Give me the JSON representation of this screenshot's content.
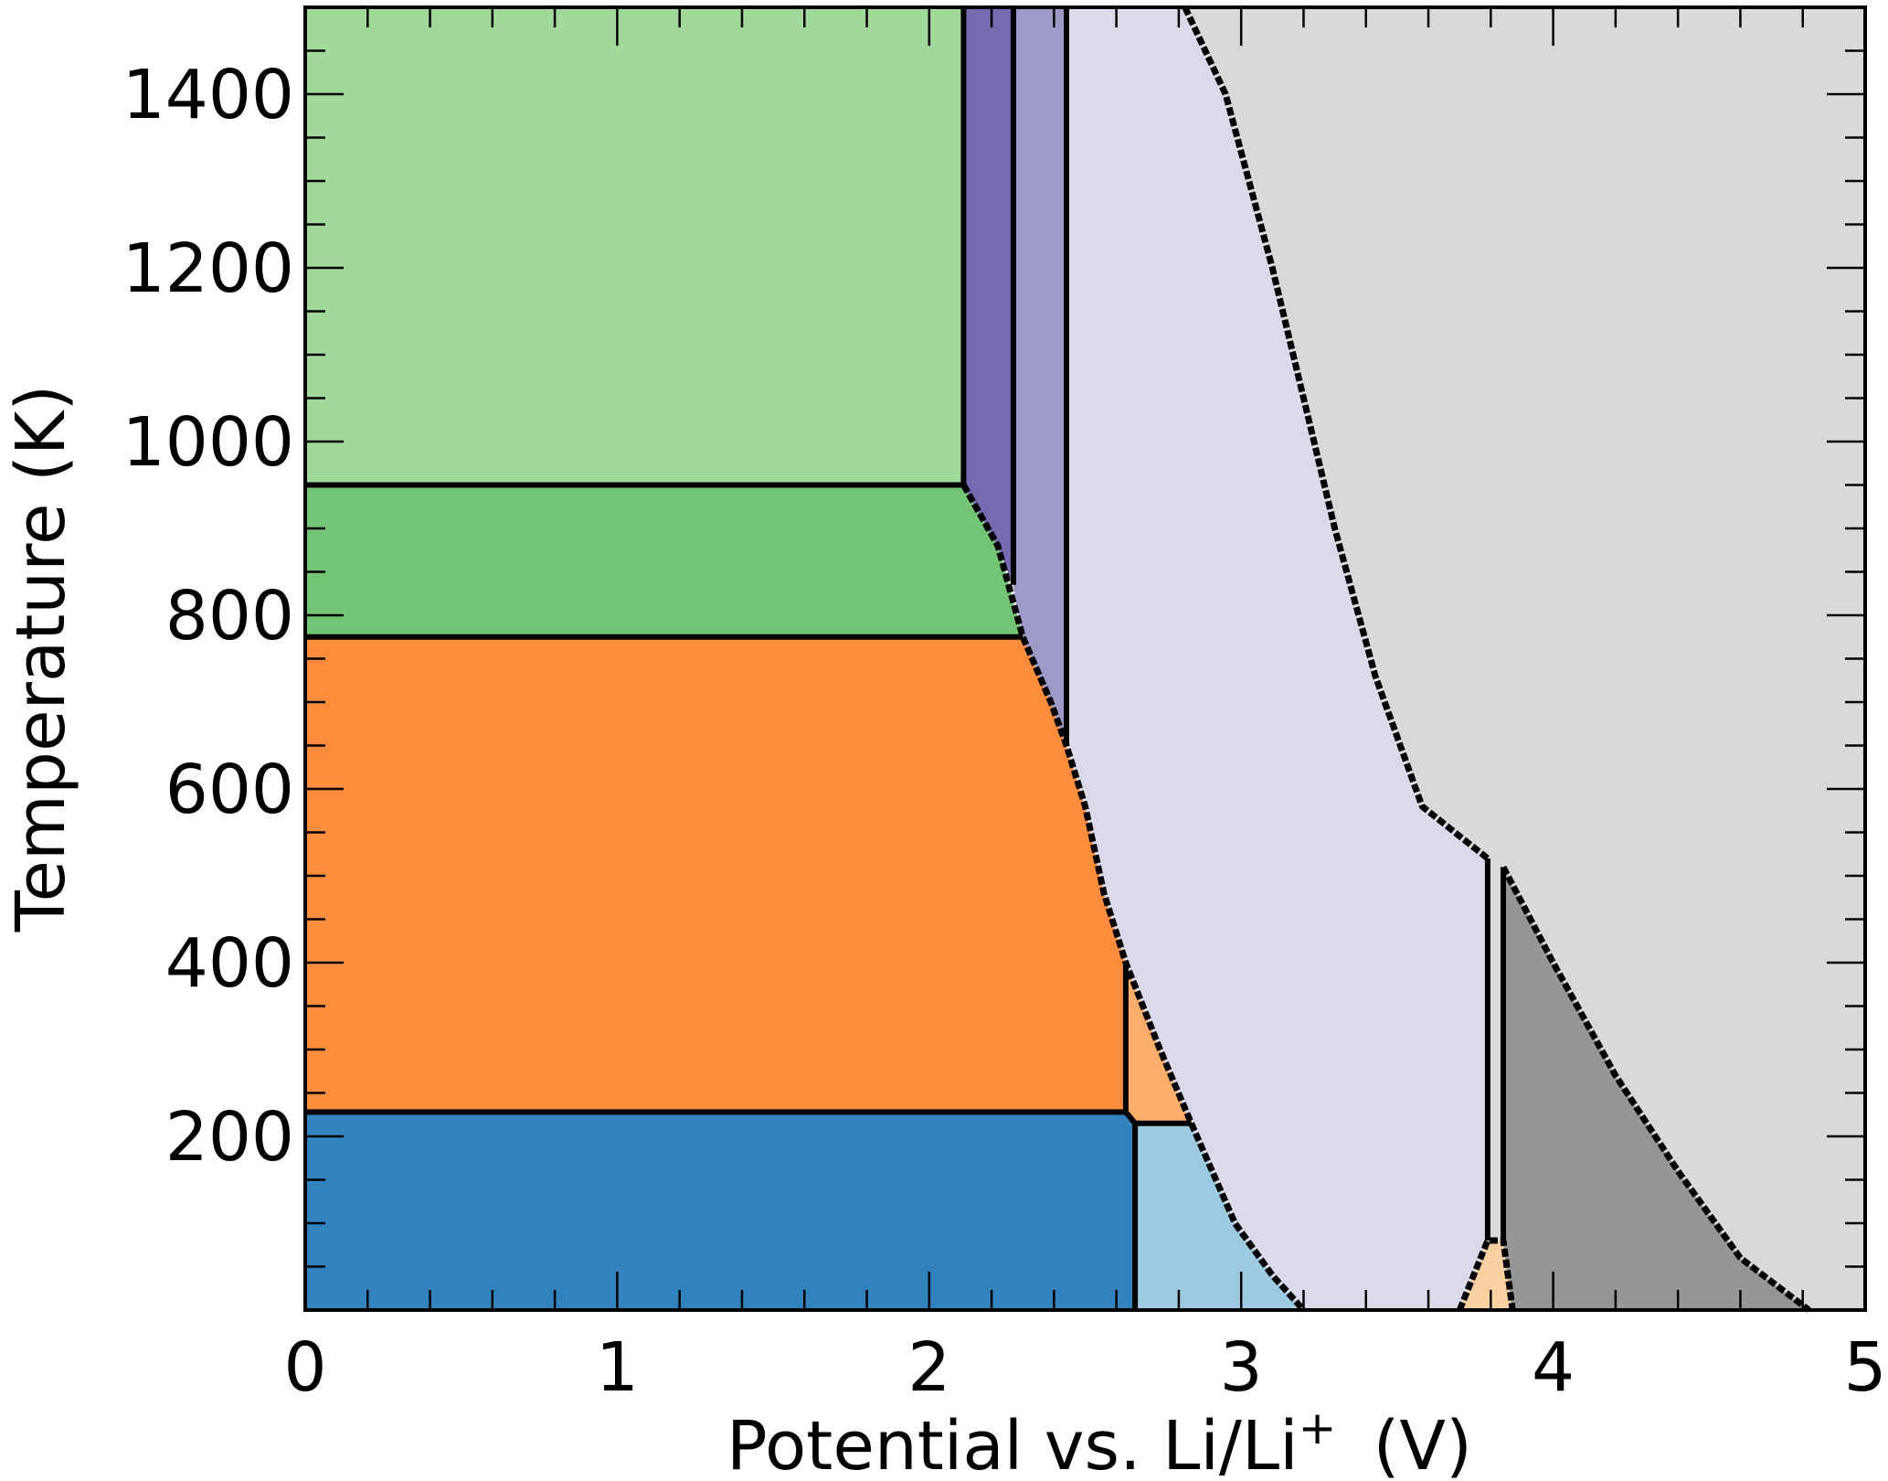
{
  "chart_data": {
    "type": "area",
    "title": "",
    "xlabel": "Potential vs. Li/Li",
    "xlabel_superscript": "+",
    "xlabel_unit": "(V)",
    "ylabel": "Temperature (K)",
    "xlim": [
      0,
      5
    ],
    "ylim": [
      0,
      1500
    ],
    "x_ticks": [
      0,
      1,
      2,
      3,
      4,
      5
    ],
    "x_tick_labels": [
      "0",
      "1",
      "2",
      "3",
      "4",
      "5"
    ],
    "y_ticks": [
      200,
      400,
      600,
      800,
      1000,
      1200,
      1400
    ],
    "y_tick_labels": [
      "200",
      "400",
      "600",
      "800",
      "1000",
      "1200",
      "1400"
    ],
    "x_minor_step": 0.2,
    "y_minor_step": 50,
    "grid": false,
    "legend": "none",
    "regions": [
      {
        "id": "light-green",
        "color": "#a1d99b",
        "points": [
          [
            0,
            1500
          ],
          [
            2.11,
            1500
          ],
          [
            2.11,
            950
          ],
          [
            0,
            950
          ]
        ]
      },
      {
        "id": "green",
        "color": "#74c476",
        "points": [
          [
            0,
            950
          ],
          [
            2.11,
            950
          ],
          [
            2.22,
            880
          ],
          [
            2.3,
            775
          ],
          [
            0,
            775
          ]
        ]
      },
      {
        "id": "orange",
        "color": "#fd8d3c",
        "points": [
          [
            0,
            775
          ],
          [
            2.3,
            775
          ],
          [
            2.39,
            700
          ],
          [
            2.44,
            650
          ],
          [
            2.5,
            580
          ],
          [
            2.56,
            480
          ],
          [
            2.63,
            400
          ],
          [
            2.63,
            228
          ],
          [
            0,
            228
          ]
        ]
      },
      {
        "id": "light-orange",
        "color": "#fdae6b",
        "points": [
          [
            2.63,
            400
          ],
          [
            2.74,
            300
          ],
          [
            2.84,
            215
          ],
          [
            2.66,
            215
          ],
          [
            2.63,
            228
          ]
        ]
      },
      {
        "id": "blue",
        "color": "#3182bd",
        "points": [
          [
            0,
            228
          ],
          [
            2.63,
            228
          ],
          [
            2.66,
            215
          ],
          [
            2.66,
            0
          ],
          [
            0,
            0
          ]
        ]
      },
      {
        "id": "light-blue",
        "color": "#9ecae1",
        "points": [
          [
            2.66,
            215
          ],
          [
            2.84,
            215
          ],
          [
            2.98,
            100
          ],
          [
            3.1,
            40
          ],
          [
            3.2,
            0
          ],
          [
            2.66,
            0
          ]
        ]
      },
      {
        "id": "dark-purple",
        "color": "#756bb1",
        "points": [
          [
            2.11,
            1500
          ],
          [
            2.27,
            1500
          ],
          [
            2.27,
            835
          ],
          [
            2.22,
            880
          ],
          [
            2.11,
            950
          ]
        ]
      },
      {
        "id": "purple",
        "color": "#9e9ac8",
        "points": [
          [
            2.27,
            1500
          ],
          [
            2.44,
            1500
          ],
          [
            2.44,
            650
          ],
          [
            2.39,
            700
          ],
          [
            2.3,
            775
          ],
          [
            2.27,
            835
          ]
        ]
      },
      {
        "id": "lavender",
        "color": "#dadaeb",
        "points": [
          [
            2.44,
            1500
          ],
          [
            2.82,
            1500
          ],
          [
            2.95,
            1400
          ],
          [
            3.1,
            1200
          ],
          [
            3.2,
            1050
          ],
          [
            3.3,
            900
          ],
          [
            3.43,
            730
          ],
          [
            3.58,
            580
          ],
          [
            3.79,
            520
          ],
          [
            3.79,
            80
          ],
          [
            3.7,
            0
          ],
          [
            3.2,
            0
          ],
          [
            3.1,
            40
          ],
          [
            2.98,
            100
          ],
          [
            2.84,
            215
          ],
          [
            2.74,
            300
          ],
          [
            2.63,
            400
          ],
          [
            2.56,
            480
          ],
          [
            2.5,
            580
          ],
          [
            2.44,
            650
          ]
        ]
      },
      {
        "id": "peach",
        "color": "#fdd0a2",
        "points": [
          [
            3.79,
            80
          ],
          [
            3.84,
            80
          ],
          [
            3.87,
            0
          ],
          [
            3.7,
            0
          ]
        ]
      },
      {
        "id": "dark-gray",
        "color": "#969696",
        "points": [
          [
            3.84,
            510
          ],
          [
            4.0,
            400
          ],
          [
            4.2,
            270
          ],
          [
            4.4,
            160
          ],
          [
            4.6,
            60
          ],
          [
            4.82,
            0
          ],
          [
            3.87,
            0
          ],
          [
            3.84,
            80
          ]
        ]
      },
      {
        "id": "light-gray",
        "color": "#d9d9d9",
        "points": [
          [
            2.82,
            1500
          ],
          [
            5,
            1500
          ],
          [
            5,
            0
          ],
          [
            4.82,
            0
          ],
          [
            4.6,
            60
          ],
          [
            4.4,
            160
          ],
          [
            4.2,
            270
          ],
          [
            4.0,
            400
          ],
          [
            3.84,
            510
          ],
          [
            3.84,
            80
          ],
          [
            3.79,
            80
          ],
          [
            3.79,
            520
          ],
          [
            3.58,
            580
          ],
          [
            3.43,
            730
          ],
          [
            3.3,
            900
          ],
          [
            3.2,
            1050
          ],
          [
            3.1,
            1200
          ],
          [
            2.95,
            1400
          ]
        ]
      }
    ],
    "boundaries": [
      {
        "style": "solid",
        "points": [
          [
            0,
            950
          ],
          [
            2.11,
            950
          ]
        ]
      },
      {
        "style": "solid",
        "points": [
          [
            0,
            775
          ],
          [
            2.3,
            775
          ]
        ]
      },
      {
        "style": "solid",
        "points": [
          [
            0,
            228
          ],
          [
            2.63,
            228
          ],
          [
            2.66,
            215
          ]
        ]
      },
      {
        "style": "solid",
        "points": [
          [
            2.66,
            215
          ],
          [
            2.84,
            215
          ]
        ]
      },
      {
        "style": "solid",
        "points": [
          [
            2.11,
            1500
          ],
          [
            2.11,
            950
          ]
        ]
      },
      {
        "style": "solid",
        "points": [
          [
            2.27,
            1500
          ],
          [
            2.27,
            835
          ]
        ]
      },
      {
        "style": "solid",
        "points": [
          [
            2.44,
            1500
          ],
          [
            2.44,
            650
          ]
        ]
      },
      {
        "style": "solid",
        "points": [
          [
            2.63,
            400
          ],
          [
            2.63,
            228
          ]
        ]
      },
      {
        "style": "solid",
        "points": [
          [
            2.66,
            215
          ],
          [
            2.66,
            0
          ]
        ]
      },
      {
        "style": "solid",
        "points": [
          [
            3.79,
            520
          ],
          [
            3.79,
            80
          ]
        ]
      },
      {
        "style": "solid",
        "points": [
          [
            3.84,
            510
          ],
          [
            3.84,
            80
          ]
        ]
      },
      {
        "style": "dotted",
        "points": [
          [
            2.11,
            950
          ],
          [
            2.22,
            880
          ],
          [
            2.3,
            775
          ],
          [
            2.39,
            700
          ],
          [
            2.44,
            650
          ],
          [
            2.5,
            580
          ],
          [
            2.56,
            480
          ],
          [
            2.63,
            400
          ],
          [
            2.74,
            300
          ],
          [
            2.84,
            215
          ],
          [
            2.98,
            100
          ],
          [
            3.1,
            40
          ],
          [
            3.2,
            0
          ]
        ]
      },
      {
        "style": "dotted",
        "points": [
          [
            2.82,
            1500
          ],
          [
            2.95,
            1400
          ],
          [
            3.1,
            1200
          ],
          [
            3.2,
            1050
          ],
          [
            3.3,
            900
          ],
          [
            3.43,
            730
          ],
          [
            3.58,
            580
          ],
          [
            3.79,
            520
          ]
        ]
      },
      {
        "style": "dotted",
        "points": [
          [
            3.84,
            510
          ],
          [
            4.0,
            400
          ],
          [
            4.2,
            270
          ],
          [
            4.4,
            160
          ],
          [
            4.6,
            60
          ],
          [
            4.82,
            0
          ]
        ]
      },
      {
        "style": "dotted",
        "points": [
          [
            3.7,
            0
          ],
          [
            3.79,
            80
          ],
          [
            3.84,
            80
          ],
          [
            3.87,
            0
          ]
        ]
      }
    ]
  }
}
